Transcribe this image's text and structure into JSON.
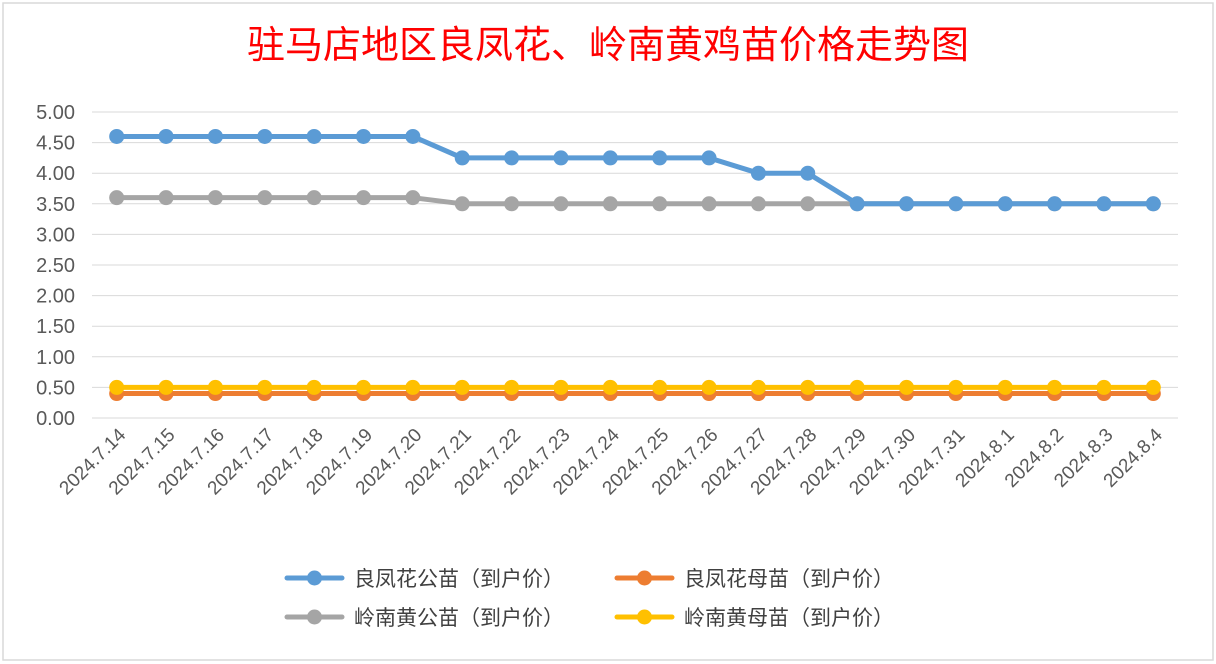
{
  "chart_data": {
    "type": "line",
    "title": "驻马店地区良凤花、岭南黄鸡苗价格走势图",
    "xlabel": "",
    "ylabel": "",
    "ylim": [
      0,
      5
    ],
    "ytick_step": 0.5,
    "ytick_labels": [
      "0.00",
      "0.50",
      "1.00",
      "1.50",
      "2.00",
      "2.50",
      "3.00",
      "3.50",
      "4.00",
      "4.50",
      "5.00"
    ],
    "grid": true,
    "legend_position": "bottom",
    "categories": [
      "2024.7.14",
      "2024.7.15",
      "2024.7.16",
      "2024.7.17",
      "2024.7.18",
      "2024.7.19",
      "2024.7.20",
      "2024.7.21",
      "2024.7.22",
      "2024.7.23",
      "2024.7.24",
      "2024.7.25",
      "2024.7.26",
      "2024.7.27",
      "2024.7.28",
      "2024.7.29",
      "2024.7.30",
      "2024.7.31",
      "2024.8.1",
      "2024.8.2",
      "2024.8.3",
      "2024.8.4"
    ],
    "series": [
      {
        "name": "良凤花公苗（到户价）",
        "color": "#5b9bd5",
        "values": [
          4.6,
          4.6,
          4.6,
          4.6,
          4.6,
          4.6,
          4.6,
          4.25,
          4.25,
          4.25,
          4.25,
          4.25,
          4.25,
          4.0,
          4.0,
          3.5,
          3.5,
          3.5,
          3.5,
          3.5,
          3.5,
          3.5
        ]
      },
      {
        "name": "良凤花母苗（到户价）",
        "color": "#ed7d31",
        "values": [
          0.4,
          0.4,
          0.4,
          0.4,
          0.4,
          0.4,
          0.4,
          0.4,
          0.4,
          0.4,
          0.4,
          0.4,
          0.4,
          0.4,
          0.4,
          0.4,
          0.4,
          0.4,
          0.4,
          0.4,
          0.4,
          0.4
        ]
      },
      {
        "name": "岭南黄公苗（到户价）",
        "color": "#a5a5a5",
        "values": [
          3.6,
          3.6,
          3.6,
          3.6,
          3.6,
          3.6,
          3.6,
          3.5,
          3.5,
          3.5,
          3.5,
          3.5,
          3.5,
          3.5,
          3.5,
          3.5,
          3.5,
          3.5,
          3.5,
          3.5,
          3.5,
          3.5
        ]
      },
      {
        "name": "岭南黄母苗（到户价）",
        "color": "#ffc000",
        "values": [
          0.5,
          0.5,
          0.5,
          0.5,
          0.5,
          0.5,
          0.5,
          0.5,
          0.5,
          0.5,
          0.5,
          0.5,
          0.5,
          0.5,
          0.5,
          0.5,
          0.5,
          0.5,
          0.5,
          0.5,
          0.5,
          0.5
        ]
      }
    ],
    "draw_order": [
      2,
      0,
      1,
      3
    ]
  }
}
